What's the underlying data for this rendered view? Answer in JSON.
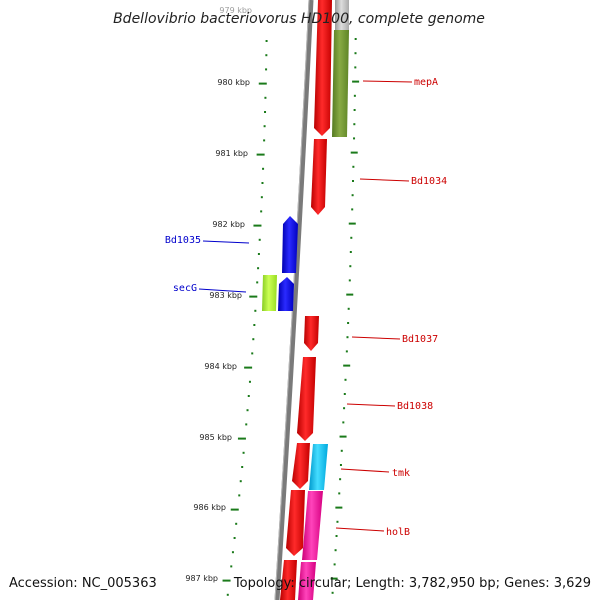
{
  "title": "Bdellovibrio bacteriovorus HD100, complete genome",
  "accession_text": "Accession: NC_005363",
  "topology_text": "Topology: circular; Length: 3,782,950 bp; Genes: 3,629",
  "kbp_labels": [
    "979 kbp",
    "980 kbp",
    "981 kbp",
    "982 kbp",
    "983 kbp",
    "984 kbp",
    "985 kbp",
    "986 kbp",
    "987 kbp"
  ],
  "genes": [
    {
      "name": "mepA",
      "color": "#cc0000"
    },
    {
      "name": "Bd1034",
      "color": "#cc0000"
    },
    {
      "name": "Bd1035",
      "color": "#0000cc"
    },
    {
      "name": "secG",
      "color": "#0000cc"
    },
    {
      "name": "Bd1037",
      "color": "#cc0000"
    },
    {
      "name": "Bd1038",
      "color": "#cc0000"
    },
    {
      "name": "tmk",
      "color": "#cc0000"
    },
    {
      "name": "holB",
      "color": "#cc0000"
    }
  ],
  "colors": {
    "backbone": "#7a7a7a",
    "tick_green": "#1a7a1a",
    "red_feature": "#ee1111",
    "blue_feature": "#1111ee",
    "olive_feature": "#77a033",
    "lime_feature": "#aaee33",
    "cyan_feature": "#22bbee",
    "magenta_feature": "#ee2299",
    "grey_feature": "#bbbbbb"
  }
}
